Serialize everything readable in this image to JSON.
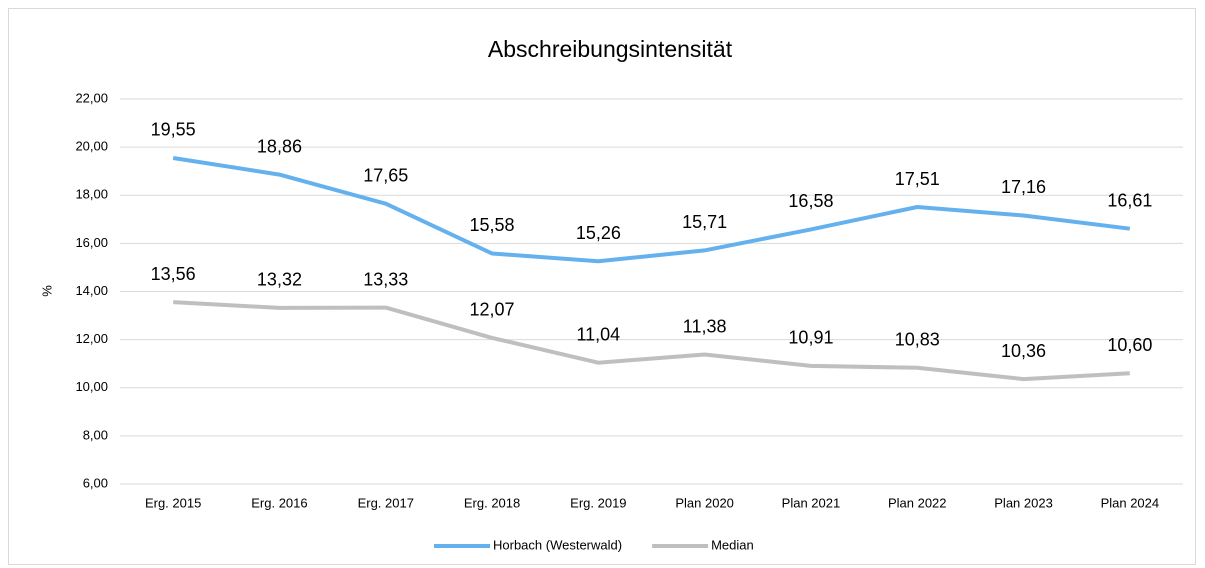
{
  "chart_data": {
    "type": "line",
    "title": "Abschreibungsintensität",
    "y_label": "%",
    "categories": [
      "Erg. 2015",
      "Erg. 2016",
      "Erg. 2017",
      "Erg. 2018",
      "Erg. 2019",
      "Plan 2020",
      "Plan 2021",
      "Plan 2022",
      "Plan 2023",
      "Plan 2024"
    ],
    "series": [
      {
        "name": "Horbach (Westerwald)",
        "color": "#64b1ee",
        "values": [
          19.55,
          18.86,
          17.65,
          15.58,
          15.26,
          15.71,
          16.58,
          17.51,
          17.16,
          16.61
        ],
        "value_labels": [
          "19,55",
          "18,86",
          "17,65",
          "15,58",
          "15,26",
          "15,71",
          "16,58",
          "17,51",
          "17,16",
          "16,61"
        ]
      },
      {
        "name": "Median",
        "color": "#bfbfbf",
        "values": [
          13.56,
          13.32,
          13.33,
          12.07,
          11.04,
          11.38,
          10.91,
          10.83,
          10.36,
          10.6
        ],
        "value_labels": [
          "13,56",
          "13,32",
          "13,33",
          "12,07",
          "11,04",
          "11,38",
          "10,91",
          "10,83",
          "10,36",
          "10,60"
        ]
      }
    ],
    "ylim": [
      6,
      22
    ],
    "yticks": [
      {
        "value": 6,
        "label": "6,00"
      },
      {
        "value": 8,
        "label": "8,00"
      },
      {
        "value": 10,
        "label": "10,00"
      },
      {
        "value": 12,
        "label": "12,00"
      },
      {
        "value": 14,
        "label": "14,00"
      },
      {
        "value": 16,
        "label": "16,00"
      },
      {
        "value": 18,
        "label": "18,00"
      },
      {
        "value": 20,
        "label": "20,00"
      },
      {
        "value": 22,
        "label": "22,00"
      }
    ],
    "grid": true,
    "legend": "bottom"
  }
}
